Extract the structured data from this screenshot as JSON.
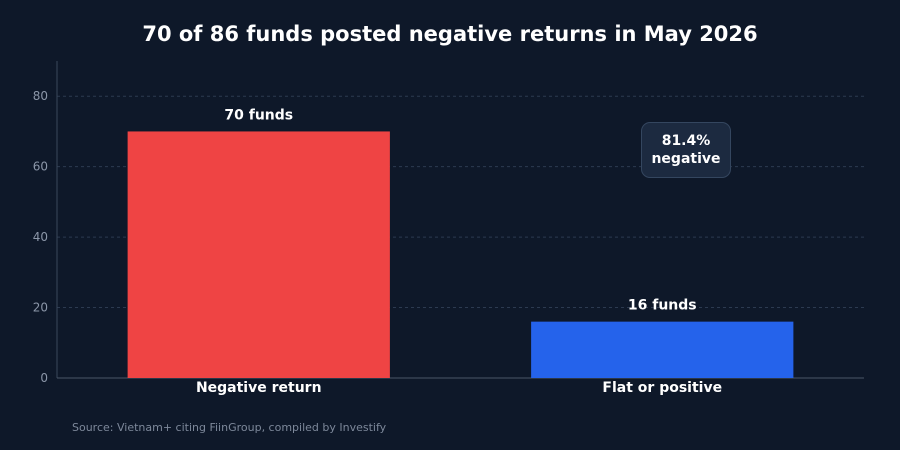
{
  "chart_data": {
    "type": "bar",
    "title": "70 of 86 funds posted negative returns in May 2026",
    "categories": [
      "Negative return",
      "Flat or positive"
    ],
    "values": [
      70,
      16
    ],
    "data_labels": [
      "70 funds",
      "16 funds"
    ],
    "colors": [
      "#ef4444",
      "#2563eb"
    ],
    "ylim": [
      0,
      90
    ],
    "yticks": [
      0,
      20,
      40,
      60,
      80
    ],
    "grid": true,
    "xlabel": "",
    "ylabel": "",
    "annotation": {
      "line1": "81.4%",
      "line2": "negative"
    }
  },
  "source": "Source: Vietnam+ citing FiinGroup, compiled by Investify"
}
